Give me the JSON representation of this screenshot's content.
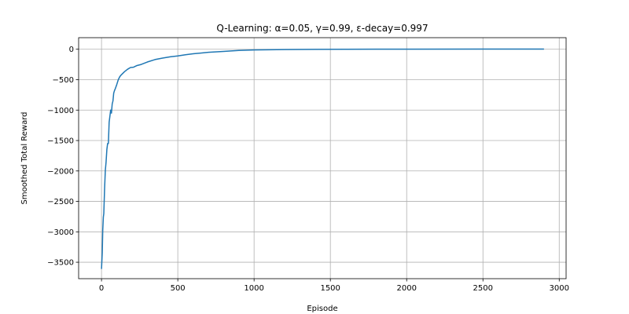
{
  "chart_data": {
    "type": "line",
    "title": "Q-Learning: α=0.05, γ=0.99, ε-decay=0.997",
    "xlabel": "Episode",
    "ylabel": "Smoothed Total Reward",
    "xlim": [
      -150,
      3045
    ],
    "ylim": [
      -3770,
      190
    ],
    "grid": true,
    "line_color": "#1f77b4",
    "xticks": [
      0,
      500,
      1000,
      1500,
      2000,
      2500,
      3000
    ],
    "xtick_labels": [
      "0",
      "500",
      "1000",
      "1500",
      "2000",
      "2500",
      "3000"
    ],
    "yticks": [
      0,
      -500,
      -1000,
      -1500,
      -2000,
      -2500,
      -3000,
      -3500
    ],
    "ytick_labels": [
      "0",
      "−500",
      "−1000",
      "−1500",
      "−2000",
      "−2500",
      "−3000",
      "−3500"
    ],
    "series": [
      {
        "x": [
          0,
          5,
          8,
          12,
          15,
          20,
          25,
          30,
          35,
          40,
          45,
          50,
          55,
          60,
          65,
          70,
          75,
          80,
          85,
          90,
          100,
          110,
          120,
          130,
          150,
          170,
          190,
          210,
          230,
          260,
          300,
          350,
          400,
          450,
          500,
          550,
          600,
          700,
          800,
          900,
          1000,
          1100,
          1200,
          1400,
          1600,
          1800,
          2000,
          2500,
          2900
        ],
        "y": [
          -3610,
          -3340,
          -2980,
          -2760,
          -2700,
          -2300,
          -1990,
          -1850,
          -1650,
          -1550,
          -1550,
          -1200,
          -1100,
          -1000,
          -1050,
          -900,
          -850,
          -720,
          -680,
          -650,
          -580,
          -500,
          -450,
          -420,
          -370,
          -330,
          -300,
          -295,
          -270,
          -250,
          -210,
          -170,
          -145,
          -125,
          -110,
          -90,
          -75,
          -50,
          -35,
          -20,
          -12,
          -8,
          -5,
          -2,
          0,
          1,
          2,
          3,
          3
        ]
      }
    ]
  }
}
